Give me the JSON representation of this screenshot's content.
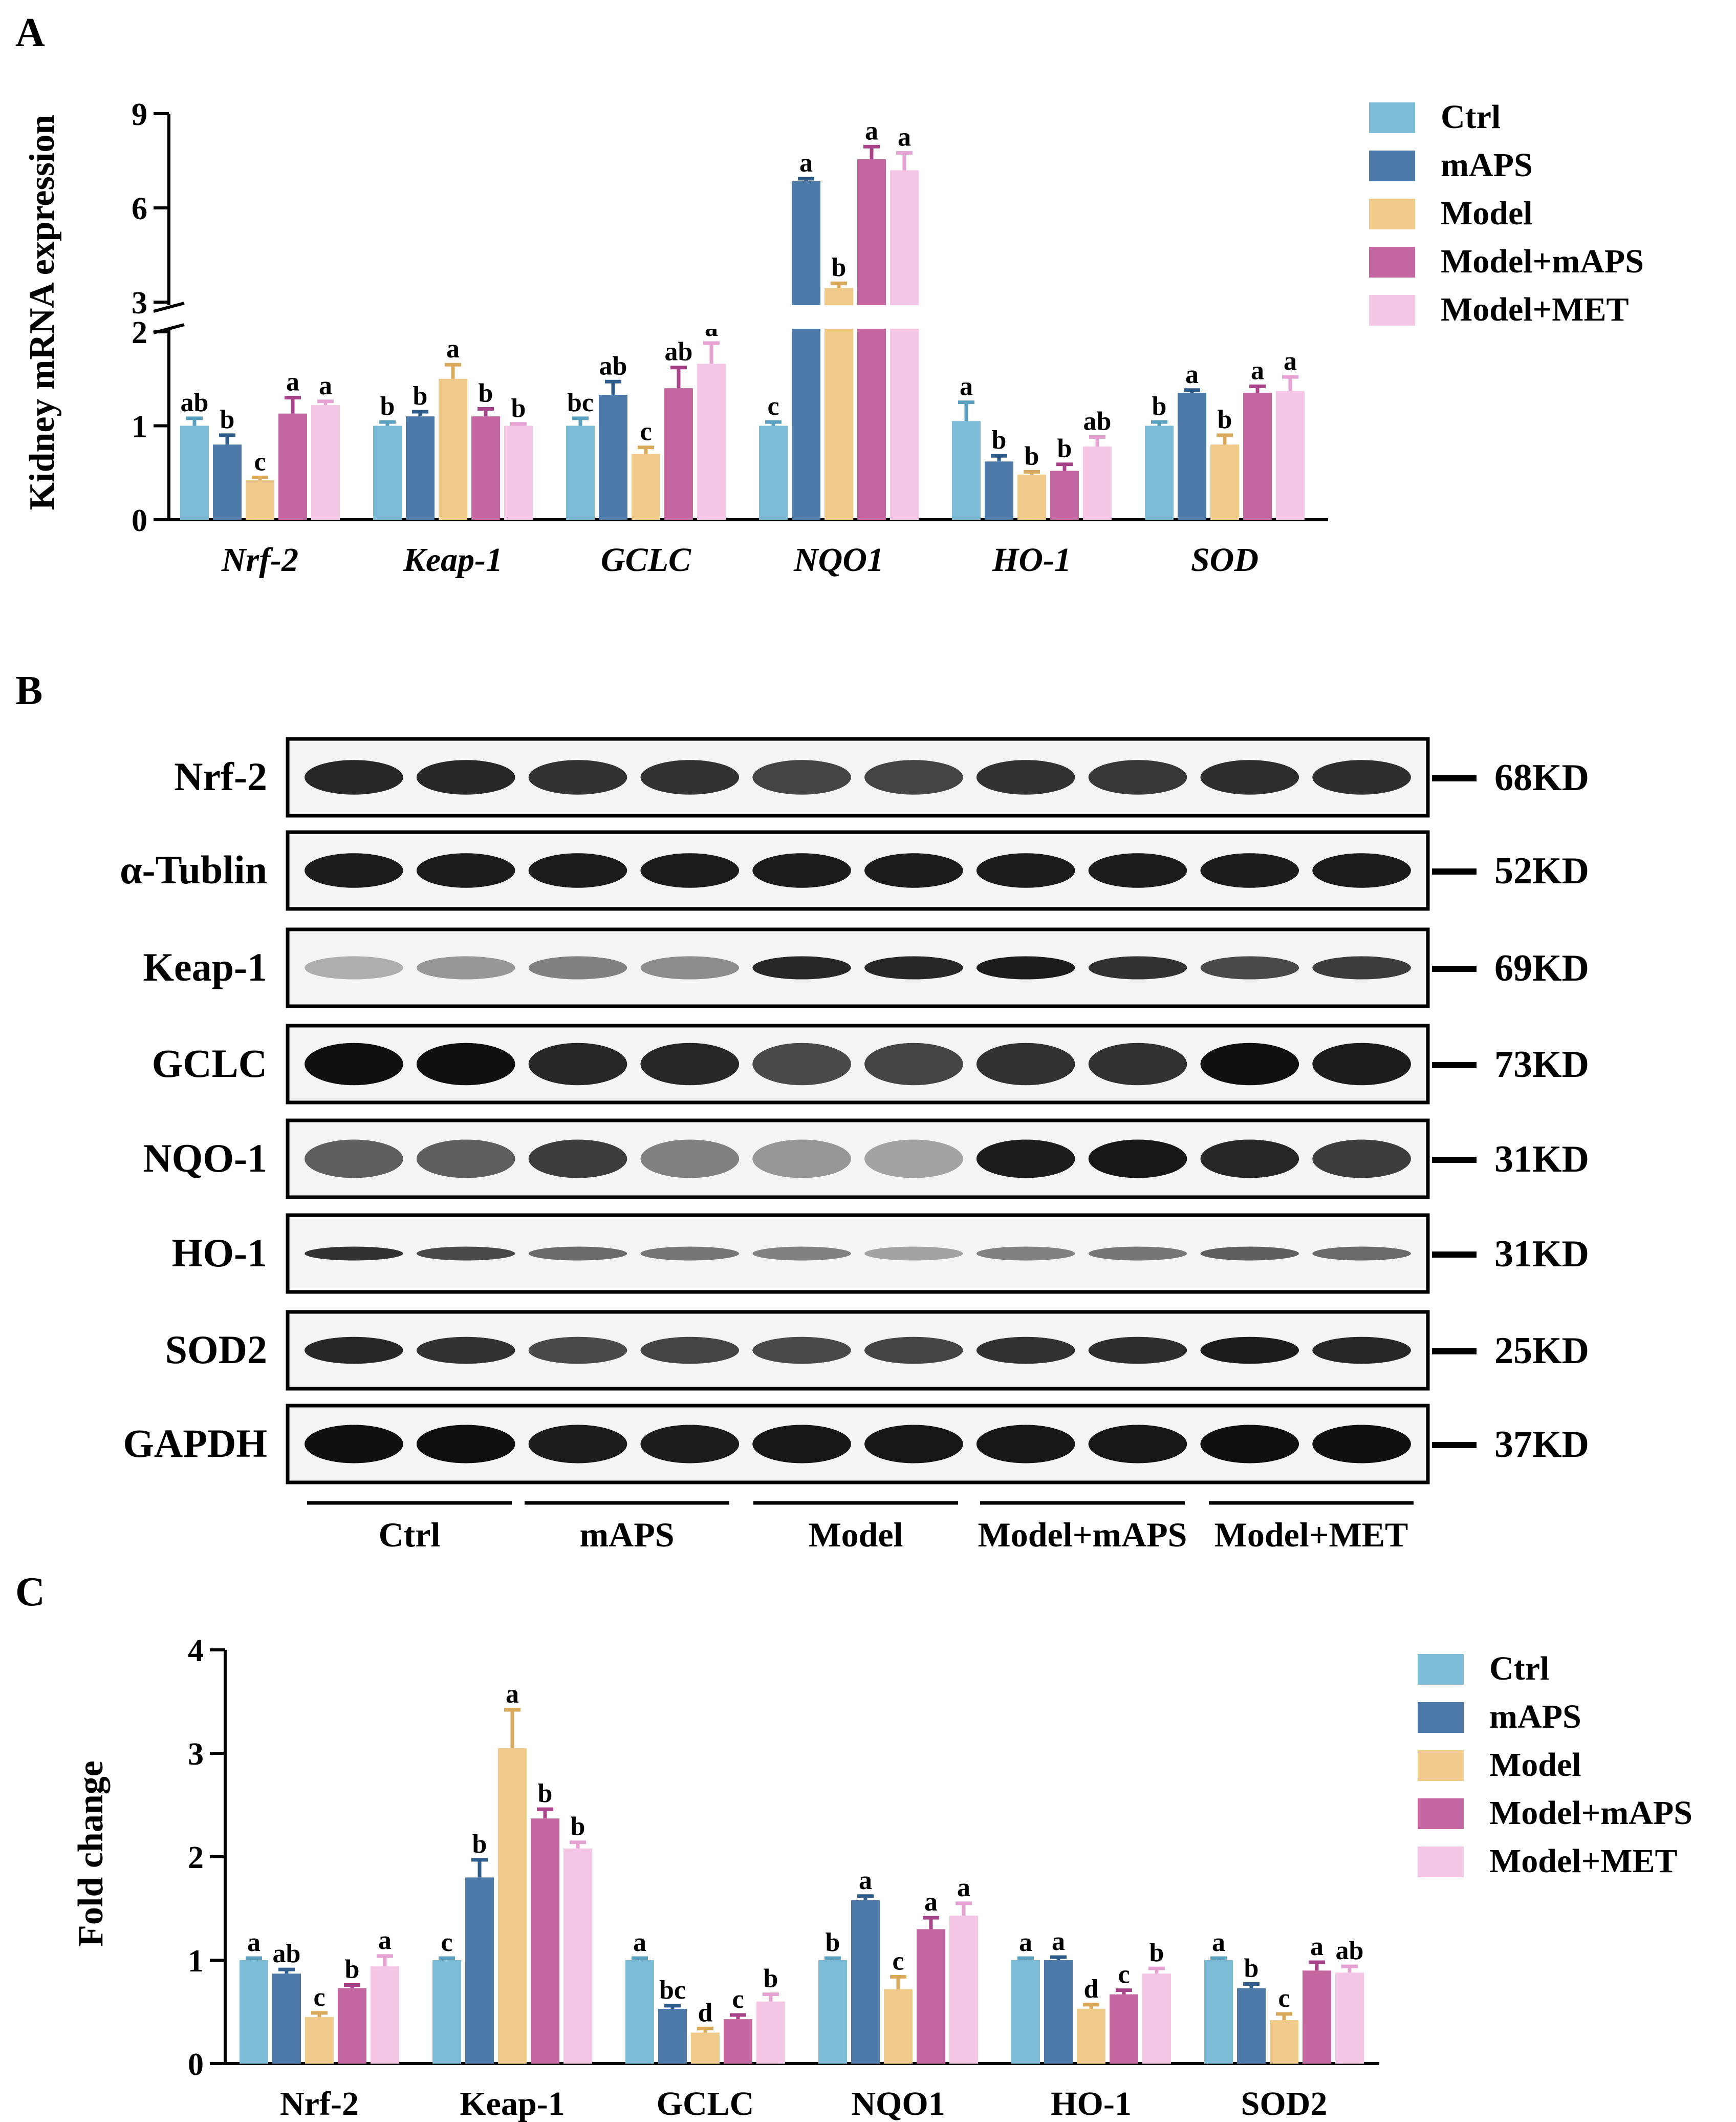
{
  "colors": {
    "Ctrl": "#7cbcd6",
    "mAPS": "#4d7aa8",
    "Model": "#f0ca88",
    "Model+mAPS": "#c467a0",
    "Model+MET": "#f5c6e6",
    "err": {
      "Ctrl": "#5a9fbd",
      "mAPS": "#2f5d8c",
      "Model": "#d9a95c",
      "Model+mAPS": "#a8438a",
      "Model+MET": "#e6a2d3"
    }
  },
  "panel_labels": {
    "a": "A",
    "b": "B",
    "c": "C"
  },
  "chart_data": [
    {
      "type": "bar",
      "panel": "A",
      "ylabel": "Kidney mRNA expression",
      "categories": [
        "Nrf-2",
        "Keap-1",
        "GCLC",
        "NQO1",
        "HO-1",
        "SOD"
      ],
      "italic_categories": true,
      "axis_break": {
        "lower": [
          0,
          2
        ],
        "upper": [
          3,
          9
        ]
      },
      "lower_ticks": [
        "0",
        "1",
        "2"
      ],
      "upper_ticks": [
        "3",
        "6",
        "9"
      ],
      "legend": [
        "Ctrl",
        "mAPS",
        "Model",
        "Model+mAPS",
        "Model+MET"
      ],
      "series": [
        {
          "name": "Ctrl",
          "values": [
            1.0,
            1.0,
            1.0,
            1.0,
            1.05,
            1.0
          ],
          "errors": [
            0.08,
            0.04,
            0.08,
            0.04,
            0.2,
            0.04
          ],
          "letters": [
            "ab",
            "b",
            "bc",
            "c",
            "a",
            "b"
          ]
        },
        {
          "name": "mAPS",
          "values": [
            0.8,
            1.1,
            1.33,
            6.85,
            0.62,
            1.35
          ],
          "errors": [
            0.1,
            0.05,
            0.14,
            0.08,
            0.06,
            0.03
          ],
          "letters": [
            "b",
            "b",
            "ab",
            "a",
            "b",
            "a"
          ]
        },
        {
          "name": "Model",
          "values": [
            0.42,
            1.5,
            0.7,
            3.45,
            0.48,
            0.8
          ],
          "errors": [
            0.03,
            0.15,
            0.07,
            0.15,
            0.03,
            0.1
          ],
          "letters": [
            "c",
            "a",
            "c",
            "b",
            "b",
            "b"
          ]
        },
        {
          "name": "Model+mAPS",
          "values": [
            1.13,
            1.1,
            1.4,
            7.55,
            0.52,
            1.35
          ],
          "errors": [
            0.17,
            0.08,
            0.22,
            0.4,
            0.07,
            0.07
          ],
          "letters": [
            "a",
            "b",
            "ab",
            "a",
            "b",
            "a"
          ]
        },
        {
          "name": "Model+MET",
          "values": [
            1.22,
            1.0,
            1.66,
            7.2,
            0.78,
            1.37
          ],
          "errors": [
            0.04,
            0.02,
            0.22,
            0.55,
            0.1,
            0.15
          ],
          "letters": [
            "a",
            "b",
            "a",
            "a",
            "ab",
            "a"
          ]
        }
      ]
    },
    {
      "type": "bar",
      "panel": "C",
      "ylabel": "Fold change",
      "categories": [
        "Nrf-2",
        "Keap-1",
        "GCLC",
        "NQO1",
        "HO-1",
        "SOD2"
      ],
      "italic_categories": false,
      "ylim": [
        0,
        4
      ],
      "ticks": [
        "0",
        "1",
        "2",
        "3",
        "4"
      ],
      "legend": [
        "Ctrl",
        "mAPS",
        "Model",
        "Model+mAPS",
        "Model+MET"
      ],
      "series": [
        {
          "name": "Ctrl",
          "values": [
            1.0,
            1.0,
            1.0,
            1.0,
            1.0,
            1.0
          ],
          "errors": [
            0.02,
            0.02,
            0.02,
            0.02,
            0.02,
            0.02
          ],
          "letters": [
            "a",
            "c",
            "a",
            "b",
            "a",
            "a"
          ]
        },
        {
          "name": "mAPS",
          "values": [
            0.87,
            1.8,
            0.53,
            1.58,
            1.0,
            0.73
          ],
          "errors": [
            0.04,
            0.17,
            0.03,
            0.04,
            0.03,
            0.04
          ],
          "letters": [
            "ab",
            "b",
            "bc",
            "a",
            "a",
            "b"
          ]
        },
        {
          "name": "Model",
          "values": [
            0.45,
            3.05,
            0.3,
            0.72,
            0.53,
            0.42
          ],
          "errors": [
            0.04,
            0.37,
            0.04,
            0.12,
            0.04,
            0.06
          ],
          "letters": [
            "c",
            "a",
            "d",
            "c",
            "d",
            "c"
          ]
        },
        {
          "name": "Model+mAPS",
          "values": [
            0.73,
            2.37,
            0.43,
            1.3,
            0.67,
            0.9
          ],
          "errors": [
            0.03,
            0.09,
            0.04,
            0.11,
            0.04,
            0.08
          ],
          "letters": [
            "b",
            "b",
            "c",
            "a",
            "c",
            "a"
          ]
        },
        {
          "name": "Model+MET",
          "values": [
            0.94,
            2.08,
            0.6,
            1.43,
            0.87,
            0.88
          ],
          "errors": [
            0.1,
            0.06,
            0.07,
            0.12,
            0.05,
            0.06
          ],
          "letters": [
            "a",
            "b",
            "b",
            "a",
            "b",
            "ab"
          ]
        }
      ]
    }
  ],
  "blot": {
    "rows": [
      {
        "label": "Nrf-2",
        "kd": "68KD",
        "intensity": [
          0.85,
          0.85,
          0.8,
          0.8,
          0.72,
          0.72,
          0.8,
          0.78,
          0.82,
          0.82
        ],
        "thickness": 0.45
      },
      {
        "label": "α-Tublin",
        "kd": "52KD",
        "intensity": [
          0.9,
          0.9,
          0.9,
          0.9,
          0.9,
          0.9,
          0.9,
          0.9,
          0.9,
          0.9
        ],
        "thickness": 0.45
      },
      {
        "label": "Keap-1",
        "kd": "69KD",
        "intensity": [
          0.25,
          0.35,
          0.45,
          0.4,
          0.85,
          0.85,
          0.9,
          0.8,
          0.7,
          0.75
        ],
        "thickness": 0.3
      },
      {
        "label": "GCLC",
        "kd": "73KD",
        "intensity": [
          0.95,
          0.95,
          0.85,
          0.85,
          0.7,
          0.72,
          0.8,
          0.8,
          0.95,
          0.9
        ],
        "thickness": 0.55
      },
      {
        "label": "NQO-1",
        "kd": "31KD",
        "intensity": [
          0.6,
          0.6,
          0.75,
          0.45,
          0.35,
          0.3,
          0.9,
          0.92,
          0.85,
          0.75
        ],
        "thickness": 0.5
      },
      {
        "label": "HO-1",
        "kd": "31KD",
        "intensity": [
          0.8,
          0.7,
          0.55,
          0.5,
          0.45,
          0.3,
          0.45,
          0.5,
          0.6,
          0.55
        ],
        "thickness": 0.18
      },
      {
        "label": "SOD2",
        "kd": "25KD",
        "intensity": [
          0.85,
          0.8,
          0.7,
          0.72,
          0.7,
          0.72,
          0.8,
          0.82,
          0.9,
          0.85
        ],
        "thickness": 0.35
      },
      {
        "label": "GAPDH",
        "kd": "37KD",
        "intensity": [
          0.95,
          0.95,
          0.9,
          0.9,
          0.92,
          0.92,
          0.92,
          0.92,
          0.95,
          0.95
        ],
        "thickness": 0.5
      }
    ],
    "groups": [
      "Ctrl",
      "mAPS",
      "Model",
      "Model+mAPS",
      "Model+MET"
    ]
  }
}
